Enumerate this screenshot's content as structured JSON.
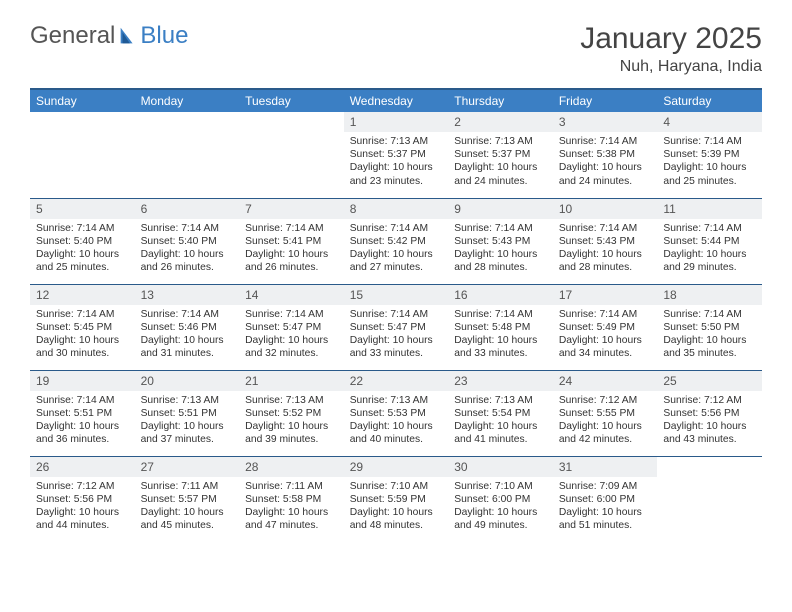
{
  "logo": {
    "part1": "General",
    "part2": "Blue"
  },
  "title": "January 2025",
  "location": "Nuh, Haryana, India",
  "colors": {
    "header_bg": "#3b7fc4",
    "header_border": "#2a5a8a",
    "daynum_bg": "#eef0f2",
    "text": "#333333",
    "page_bg": "#ffffff"
  },
  "weekdays": [
    "Sunday",
    "Monday",
    "Tuesday",
    "Wednesday",
    "Thursday",
    "Friday",
    "Saturday"
  ],
  "weeks": [
    [
      {
        "n": "",
        "empty": true
      },
      {
        "n": "",
        "empty": true
      },
      {
        "n": "",
        "empty": true
      },
      {
        "n": "1",
        "sr": "7:13 AM",
        "ss": "5:37 PM",
        "dh": 10,
        "dm": 23
      },
      {
        "n": "2",
        "sr": "7:13 AM",
        "ss": "5:37 PM",
        "dh": 10,
        "dm": 24
      },
      {
        "n": "3",
        "sr": "7:14 AM",
        "ss": "5:38 PM",
        "dh": 10,
        "dm": 24
      },
      {
        "n": "4",
        "sr": "7:14 AM",
        "ss": "5:39 PM",
        "dh": 10,
        "dm": 25
      }
    ],
    [
      {
        "n": "5",
        "sr": "7:14 AM",
        "ss": "5:40 PM",
        "dh": 10,
        "dm": 25
      },
      {
        "n": "6",
        "sr": "7:14 AM",
        "ss": "5:40 PM",
        "dh": 10,
        "dm": 26
      },
      {
        "n": "7",
        "sr": "7:14 AM",
        "ss": "5:41 PM",
        "dh": 10,
        "dm": 26
      },
      {
        "n": "8",
        "sr": "7:14 AM",
        "ss": "5:42 PM",
        "dh": 10,
        "dm": 27
      },
      {
        "n": "9",
        "sr": "7:14 AM",
        "ss": "5:43 PM",
        "dh": 10,
        "dm": 28
      },
      {
        "n": "10",
        "sr": "7:14 AM",
        "ss": "5:43 PM",
        "dh": 10,
        "dm": 28
      },
      {
        "n": "11",
        "sr": "7:14 AM",
        "ss": "5:44 PM",
        "dh": 10,
        "dm": 29
      }
    ],
    [
      {
        "n": "12",
        "sr": "7:14 AM",
        "ss": "5:45 PM",
        "dh": 10,
        "dm": 30
      },
      {
        "n": "13",
        "sr": "7:14 AM",
        "ss": "5:46 PM",
        "dh": 10,
        "dm": 31
      },
      {
        "n": "14",
        "sr": "7:14 AM",
        "ss": "5:47 PM",
        "dh": 10,
        "dm": 32
      },
      {
        "n": "15",
        "sr": "7:14 AM",
        "ss": "5:47 PM",
        "dh": 10,
        "dm": 33
      },
      {
        "n": "16",
        "sr": "7:14 AM",
        "ss": "5:48 PM",
        "dh": 10,
        "dm": 33
      },
      {
        "n": "17",
        "sr": "7:14 AM",
        "ss": "5:49 PM",
        "dh": 10,
        "dm": 34
      },
      {
        "n": "18",
        "sr": "7:14 AM",
        "ss": "5:50 PM",
        "dh": 10,
        "dm": 35
      }
    ],
    [
      {
        "n": "19",
        "sr": "7:14 AM",
        "ss": "5:51 PM",
        "dh": 10,
        "dm": 36
      },
      {
        "n": "20",
        "sr": "7:13 AM",
        "ss": "5:51 PM",
        "dh": 10,
        "dm": 37
      },
      {
        "n": "21",
        "sr": "7:13 AM",
        "ss": "5:52 PM",
        "dh": 10,
        "dm": 39
      },
      {
        "n": "22",
        "sr": "7:13 AM",
        "ss": "5:53 PM",
        "dh": 10,
        "dm": 40
      },
      {
        "n": "23",
        "sr": "7:13 AM",
        "ss": "5:54 PM",
        "dh": 10,
        "dm": 41
      },
      {
        "n": "24",
        "sr": "7:12 AM",
        "ss": "5:55 PM",
        "dh": 10,
        "dm": 42
      },
      {
        "n": "25",
        "sr": "7:12 AM",
        "ss": "5:56 PM",
        "dh": 10,
        "dm": 43
      }
    ],
    [
      {
        "n": "26",
        "sr": "7:12 AM",
        "ss": "5:56 PM",
        "dh": 10,
        "dm": 44
      },
      {
        "n": "27",
        "sr": "7:11 AM",
        "ss": "5:57 PM",
        "dh": 10,
        "dm": 45
      },
      {
        "n": "28",
        "sr": "7:11 AM",
        "ss": "5:58 PM",
        "dh": 10,
        "dm": 47
      },
      {
        "n": "29",
        "sr": "7:10 AM",
        "ss": "5:59 PM",
        "dh": 10,
        "dm": 48
      },
      {
        "n": "30",
        "sr": "7:10 AM",
        "ss": "6:00 PM",
        "dh": 10,
        "dm": 49
      },
      {
        "n": "31",
        "sr": "7:09 AM",
        "ss": "6:00 PM",
        "dh": 10,
        "dm": 51
      },
      {
        "n": "",
        "empty": true
      }
    ]
  ]
}
